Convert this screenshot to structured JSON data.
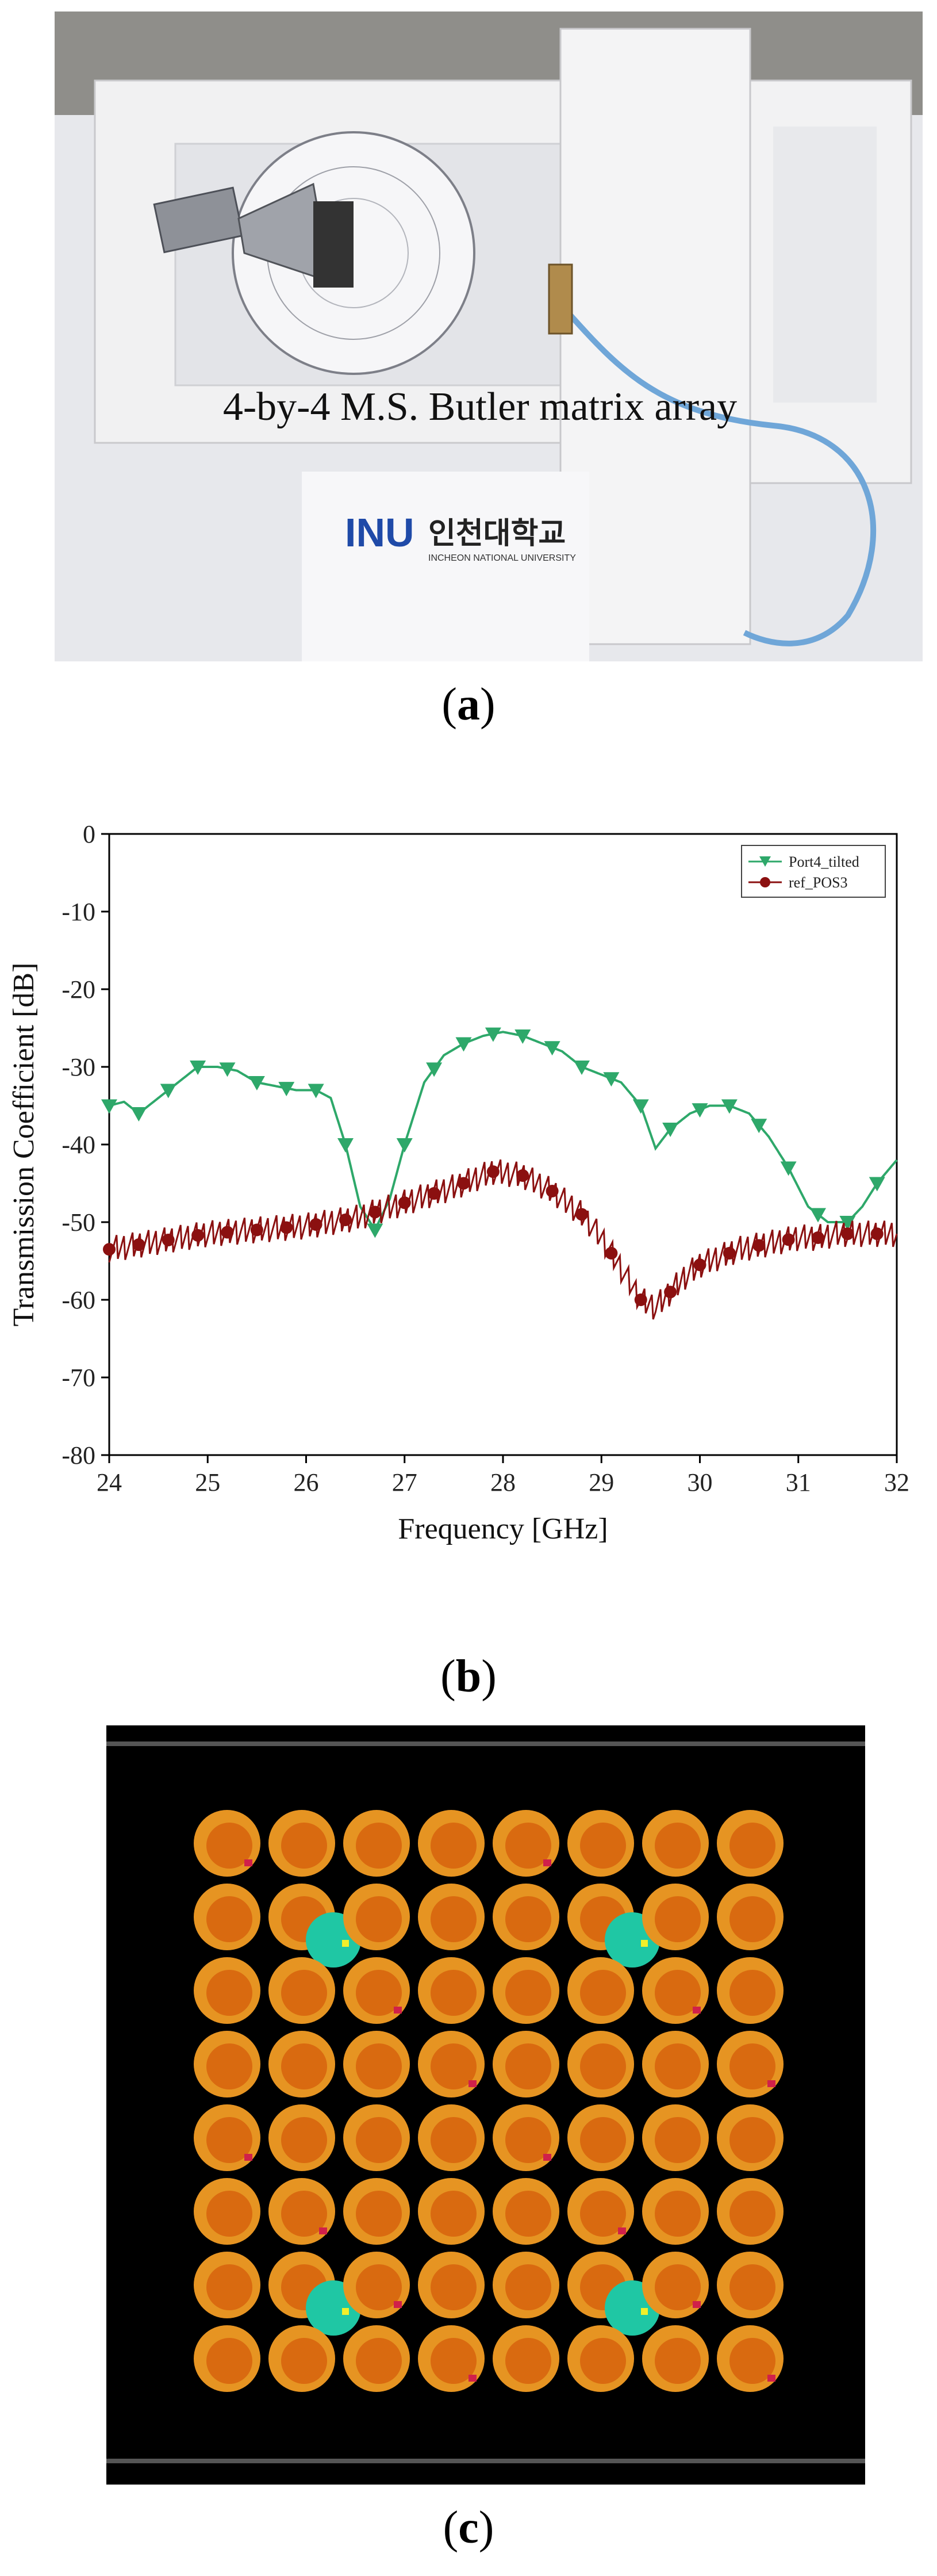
{
  "panel_a": {
    "caption": "4-by-4 M.S. Butler matrix array",
    "logo_text": "INU",
    "logo_korean": "인천대학교",
    "logo_sub": "INCHEON NATIONAL UNIVERSITY",
    "label_open": "(",
    "label_letter": "a",
    "label_close": ")"
  },
  "panel_b": {
    "label_open": "(",
    "label_letter": "b",
    "label_close": ")"
  },
  "panel_c": {
    "label_open": "(",
    "label_letter": "c",
    "label_close": ")"
  },
  "chart_data": {
    "type": "line",
    "title": "",
    "xlabel": "Frequency [GHz]",
    "ylabel": "Transmission Coefficient [dB]",
    "xlim": [
      24,
      32
    ],
    "ylim": [
      -80,
      0
    ],
    "xticks": [
      24,
      25,
      26,
      27,
      28,
      29,
      30,
      31,
      32
    ],
    "yticks": [
      0,
      -10,
      -20,
      -30,
      -40,
      -50,
      -60,
      -70,
      -80
    ],
    "legend_position": "top-right",
    "series": [
      {
        "name": "Port4_tilted",
        "color": "#2ea86a",
        "marker": "triangle-down",
        "x": [
          24.0,
          24.15,
          24.3,
          24.5,
          24.7,
          24.9,
          25.1,
          25.3,
          25.5,
          25.7,
          25.9,
          26.1,
          26.25,
          26.4,
          26.55,
          26.7,
          26.85,
          27.0,
          27.2,
          27.4,
          27.6,
          27.8,
          28.0,
          28.2,
          28.4,
          28.6,
          28.8,
          29.0,
          29.2,
          29.4,
          29.55,
          29.7,
          29.9,
          30.1,
          30.3,
          30.5,
          30.7,
          30.9,
          31.1,
          31.3,
          31.5,
          31.65,
          31.8,
          32.0
        ],
        "y": [
          -35,
          -34.5,
          -36,
          -34,
          -32,
          -30,
          -30,
          -30.5,
          -32,
          -32.5,
          -33,
          -33,
          -34,
          -40,
          -48,
          -51,
          -47,
          -40,
          -32,
          -28.5,
          -27,
          -26,
          -25.5,
          -26,
          -27,
          -28,
          -30,
          -31,
          -32,
          -35,
          -40.5,
          -38,
          -36,
          -35,
          -35,
          -36,
          -39,
          -43,
          -48,
          -50,
          -50,
          -48,
          -45,
          -42
        ]
      },
      {
        "name": "ref_POS3",
        "color": "#8b1010",
        "marker": "circle",
        "x": [
          24.0,
          24.5,
          25.0,
          25.5,
          26.0,
          26.5,
          27.0,
          27.5,
          27.9,
          28.2,
          28.5,
          28.8,
          29.0,
          29.2,
          29.4,
          29.55,
          29.7,
          29.85,
          30.0,
          30.2,
          30.4,
          30.6,
          30.8,
          31.0,
          31.2,
          31.4,
          31.6,
          31.8,
          32.0
        ],
        "y": [
          -53.5,
          -52.5,
          -51.5,
          -51,
          -50.5,
          -49.5,
          -47.5,
          -45.5,
          -43.5,
          -44,
          -46,
          -49,
          -52,
          -56,
          -60,
          -61,
          -59,
          -57,
          -55.5,
          -54.5,
          -53.5,
          -53,
          -52.5,
          -52,
          -52,
          -51.5,
          -51.5,
          -51.5,
          -51.5
        ]
      }
    ],
    "marker_every": 0.25
  }
}
